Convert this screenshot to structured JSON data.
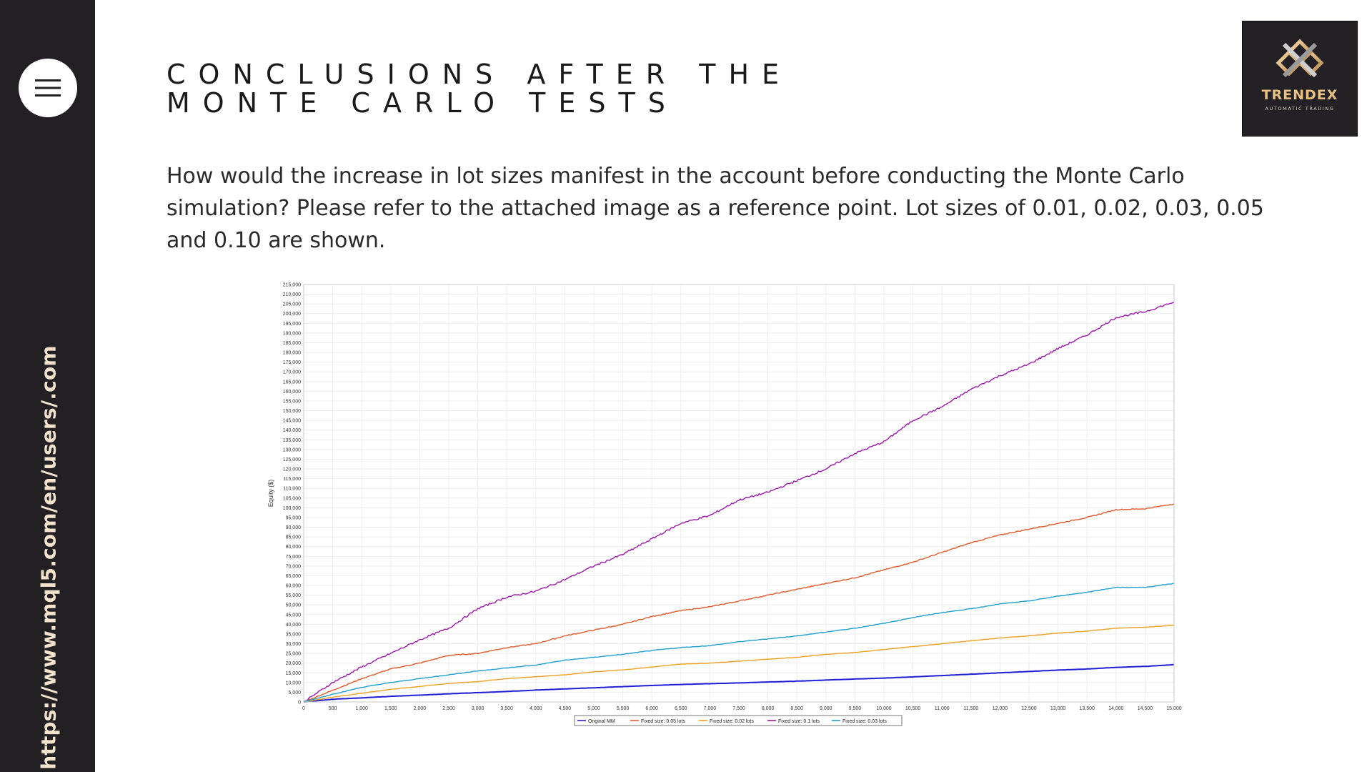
{
  "sidebar": {
    "menu_icon": "hamburger-menu-icon",
    "url": "https://www.mql5.com/en/users/.com",
    "url_color": "#f3e2cc"
  },
  "header": {
    "title_line1": "CONCLUSIONS AFTER THE",
    "title_line2": "MONTE CARLO TESTS"
  },
  "logo": {
    "name": "TRENDEX",
    "tagline": "AUTOMATIC TRADING",
    "accent": "#e9c07f"
  },
  "body_text": "How would the increase in lot sizes manifest in the account before conducting the Monte Carlo simulation? Please refer to the attached image as a reference point. Lot sizes of 0.01, 0.02, 0.03, 0.05 and 0.10 are shown.",
  "chart_data": {
    "type": "line",
    "title": "",
    "xlabel": "",
    "ylabel": "Equity ($)",
    "xlim": [
      0,
      15000
    ],
    "ylim": [
      0,
      215000
    ],
    "x_ticks": [
      "0",
      "500",
      "1,000",
      "1,500",
      "2,000",
      "2,500",
      "3,000",
      "3,500",
      "4,000",
      "4,500",
      "5,000",
      "5,500",
      "6,000",
      "6,500",
      "7,000",
      "7,500",
      "8,000",
      "8,500",
      "9,000",
      "9,500",
      "10,000",
      "10,500",
      "11,000",
      "11,500",
      "12,000",
      "12,500",
      "13,000",
      "13,500",
      "14,000",
      "14,500",
      "15,000"
    ],
    "y_ticks": [
      "0",
      "5,000",
      "10,000",
      "15,000",
      "20,000",
      "25,000",
      "30,000",
      "35,000",
      "40,000",
      "45,000",
      "50,000",
      "55,000",
      "60,000",
      "65,000",
      "70,000",
      "75,000",
      "80,000",
      "85,000",
      "90,000",
      "95,000",
      "100,000",
      "105,000",
      "110,000",
      "115,000",
      "120,000",
      "125,000",
      "130,000",
      "135,000",
      "140,000",
      "145,000",
      "150,000",
      "155,000",
      "160,000",
      "165,000",
      "170,000",
      "175,000",
      "180,000",
      "185,000",
      "190,000",
      "195,000",
      "200,000",
      "205,000",
      "210,000",
      "215,000"
    ],
    "grid": true,
    "legend_position": "bottom",
    "x": [
      0,
      500,
      1000,
      1500,
      2000,
      2500,
      3000,
      3500,
      4000,
      4500,
      5000,
      5500,
      6000,
      6500,
      7000,
      7500,
      8000,
      8500,
      9000,
      9500,
      10000,
      10500,
      11000,
      11500,
      12000,
      12500,
      13000,
      13500,
      14000,
      14500,
      15000
    ],
    "series": [
      {
        "name": "Original MM",
        "color": "#1f1fd6",
        "values": [
          0,
          1400,
          2100,
          2900,
          3500,
          4200,
          4800,
          5400,
          6100,
          6700,
          7300,
          7900,
          8500,
          9000,
          9400,
          9800,
          10300,
          10700,
          11300,
          11800,
          12300,
          12900,
          13600,
          14300,
          15000,
          15700,
          16400,
          17000,
          17800,
          18300,
          19200
        ]
      },
      {
        "name": "Fixed size: 0.05 lots",
        "color": "#e05a2b",
        "values": [
          0,
          6000,
          12000,
          17000,
          20000,
          24000,
          25000,
          28000,
          30000,
          34000,
          37000,
          40000,
          44000,
          47000,
          49000,
          52000,
          55000,
          58000,
          61000,
          64000,
          68000,
          72000,
          77000,
          82000,
          86000,
          89000,
          92000,
          95000,
          99000,
          99500,
          102000
        ]
      },
      {
        "name": "Fixed size: 0.02 lots",
        "color": "#f0a020",
        "values": [
          0,
          2500,
          4500,
          6500,
          8000,
          9500,
          10500,
          12000,
          13000,
          14000,
          15500,
          16500,
          18000,
          19500,
          20000,
          21000,
          22000,
          23000,
          24500,
          25500,
          27000,
          28500,
          30000,
          31500,
          33000,
          34000,
          35500,
          36500,
          38000,
          38500,
          39500
        ]
      },
      {
        "name": "Fixed size: 0.1 lots",
        "color": "#9a1aa8",
        "values": [
          0,
          10000,
          18000,
          25000,
          32000,
          38000,
          48000,
          54000,
          57000,
          63000,
          70000,
          76000,
          84000,
          92000,
          96000,
          104000,
          108000,
          114000,
          120000,
          128000,
          134000,
          145000,
          152000,
          161000,
          168000,
          174000,
          182000,
          189000,
          198000,
          201000,
          206000
        ]
      },
      {
        "name": "Fixed size: 0.03 lots",
        "color": "#1d9fd1",
        "values": [
          0,
          4000,
          7500,
          10000,
          12000,
          14000,
          16000,
          17500,
          19000,
          21500,
          23000,
          24500,
          26500,
          28000,
          29000,
          31000,
          32500,
          34000,
          36000,
          38000,
          40500,
          43500,
          46000,
          48000,
          50500,
          52000,
          54500,
          56500,
          59000,
          59000,
          61000
        ]
      }
    ]
  }
}
